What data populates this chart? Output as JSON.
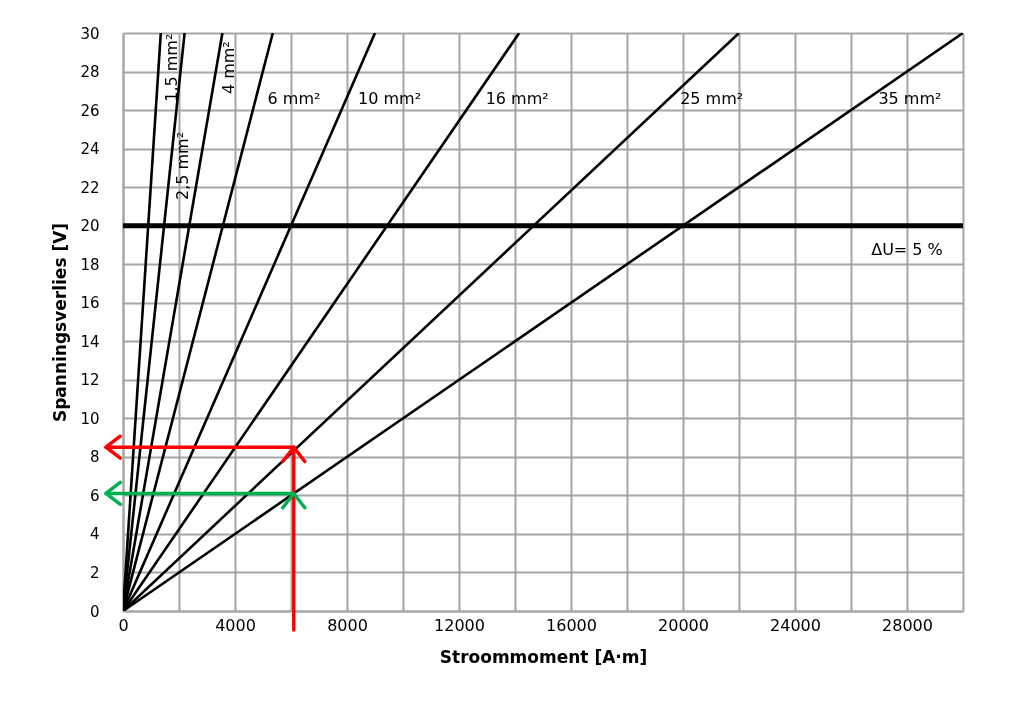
{
  "chart_data": {
    "type": "line",
    "xlabel": "Stroommoment [A·m]",
    "ylabel": "Spanningsverlies [V]",
    "series": [
      {
        "name": "1,5 mm²",
        "color": "#000000",
        "x": [
          0,
          1350
        ],
        "values": [
          0,
          30
        ]
      },
      {
        "name": "2,5 mm²",
        "color": "#000000",
        "x": [
          0,
          2200
        ],
        "values": [
          0,
          30
        ]
      },
      {
        "name": "4 mm²",
        "color": "#000000",
        "x": [
          0,
          3550
        ],
        "values": [
          0,
          30
        ]
      },
      {
        "name": "6 mm²",
        "color": "#000000",
        "x": [
          0,
          5350
        ],
        "values": [
          0,
          30
        ]
      },
      {
        "name": "10 mm²",
        "color": "#000000",
        "x": [
          0,
          9000
        ],
        "values": [
          0,
          30
        ]
      },
      {
        "name": "16 mm²",
        "color": "#000000",
        "x": [
          0,
          14150
        ],
        "values": [
          0,
          30
        ]
      },
      {
        "name": "25 mm²",
        "color": "#000000",
        "x": [
          0,
          22000
        ],
        "values": [
          0,
          30
        ]
      },
      {
        "name": "35 mm²",
        "color": "#000000",
        "x": [
          0,
          30000
        ],
        "values": [
          0,
          30
        ]
      }
    ],
    "xlim": [
      0,
      30000
    ],
    "ylim": [
      0,
      30
    ],
    "xticks": [
      0,
      {
        "value": 2000,
        "label": null
      },
      4000,
      {
        "value": 6000,
        "label": null
      },
      8000,
      {
        "value": 10000,
        "label": null
      },
      12000,
      {
        "value": 14000,
        "label": null
      },
      16000,
      {
        "value": 18000,
        "label": null
      },
      20000,
      {
        "value": 22000,
        "label": null
      },
      24000,
      {
        "value": 26000,
        "label": null
      },
      28000,
      {
        "value": 30000,
        "label": null
      }
    ],
    "yticks": [
      0,
      2,
      4,
      6,
      8,
      10,
      12,
      14,
      16,
      18,
      20,
      22,
      24,
      26,
      28,
      30
    ],
    "grid": true,
    "legend": false,
    "line_style": "solid",
    "ref_lines": [
      {
        "axis": "y",
        "value": 20,
        "color": "#000000"
      }
    ],
    "annotations": [
      {
        "text": "ΔU= 5 %",
        "x": 28000,
        "y": 20
      }
    ]
  }
}
